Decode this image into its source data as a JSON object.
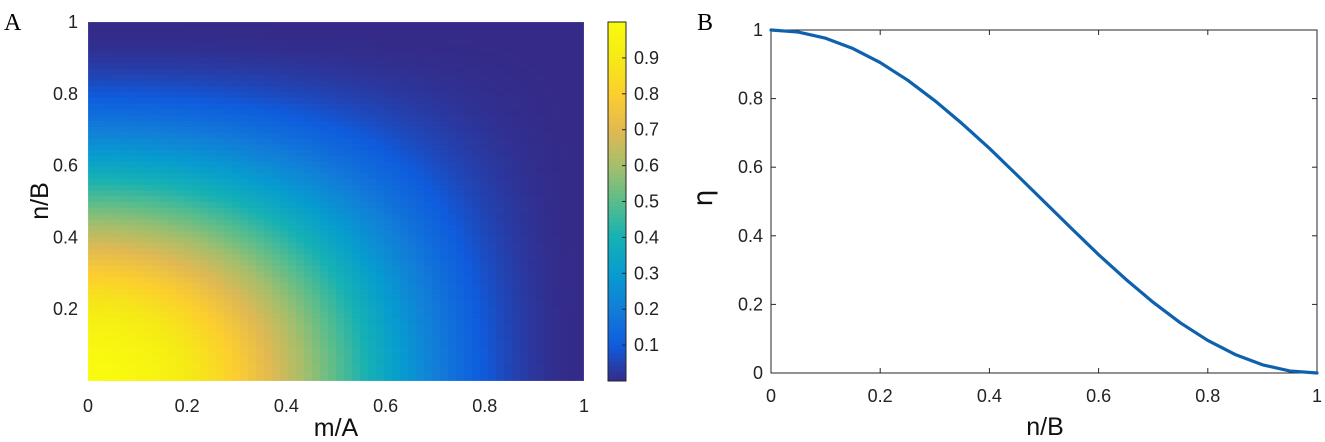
{
  "chart_data": [
    {
      "type": "heatmap",
      "panel_label": "A",
      "title": "",
      "xlabel": "m/A",
      "ylabel": "n/B",
      "xlim": [
        0,
        1
      ],
      "ylim": [
        0,
        1
      ],
      "x_ticks": [
        0,
        0.2,
        0.4,
        0.6,
        0.8,
        1
      ],
      "x_tick_labels": [
        "0",
        "0.2",
        "0.4",
        "0.6",
        "0.8",
        "1"
      ],
      "y_ticks": [
        0.2,
        0.4,
        0.6,
        0.8,
        1
      ],
      "y_tick_labels": [
        "0.2",
        "0.4",
        "0.6",
        "0.8",
        "1"
      ],
      "value_function": "eta(m/A) * eta(n/B), eta(t) = (1 + cos(pi*t)) / 2",
      "colormap": "parula",
      "colorbar": {
        "range": [
          0,
          1
        ],
        "ticks": [
          0.1,
          0.2,
          0.3,
          0.4,
          0.5,
          0.6,
          0.7,
          0.8,
          0.9
        ],
        "tick_labels": [
          "0.1",
          "0.2",
          "0.3",
          "0.4",
          "0.5",
          "0.6",
          "0.7",
          "0.8",
          "0.9"
        ],
        "placement": "right"
      }
    },
    {
      "type": "line",
      "panel_label": "B",
      "title": "",
      "xlabel": "n/B",
      "ylabel": "η",
      "xlim": [
        0,
        1
      ],
      "ylim": [
        0,
        1
      ],
      "x_ticks": [
        0,
        0.2,
        0.4,
        0.6,
        0.8,
        1
      ],
      "x_tick_labels": [
        "0",
        "0.2",
        "0.4",
        "0.6",
        "0.8",
        "1"
      ],
      "y_ticks": [
        0,
        0.2,
        0.4,
        0.6,
        0.8,
        1
      ],
      "y_tick_labels": [
        "0",
        "0.2",
        "0.4",
        "0.6",
        "0.8",
        "1"
      ],
      "series": [
        {
          "color": "#0e62ad",
          "x": [
            0,
            0.05,
            0.1,
            0.15,
            0.2,
            0.25,
            0.3,
            0.35,
            0.4,
            0.45,
            0.5,
            0.55,
            0.6,
            0.65,
            0.7,
            0.75,
            0.8,
            0.85,
            0.9,
            0.95,
            1
          ],
          "y": [
            1,
            0.994,
            0.976,
            0.946,
            0.905,
            0.854,
            0.794,
            0.727,
            0.655,
            0.578,
            0.5,
            0.422,
            0.345,
            0.273,
            0.206,
            0.146,
            0.095,
            0.054,
            0.024,
            0.006,
            0
          ]
        }
      ]
    }
  ]
}
